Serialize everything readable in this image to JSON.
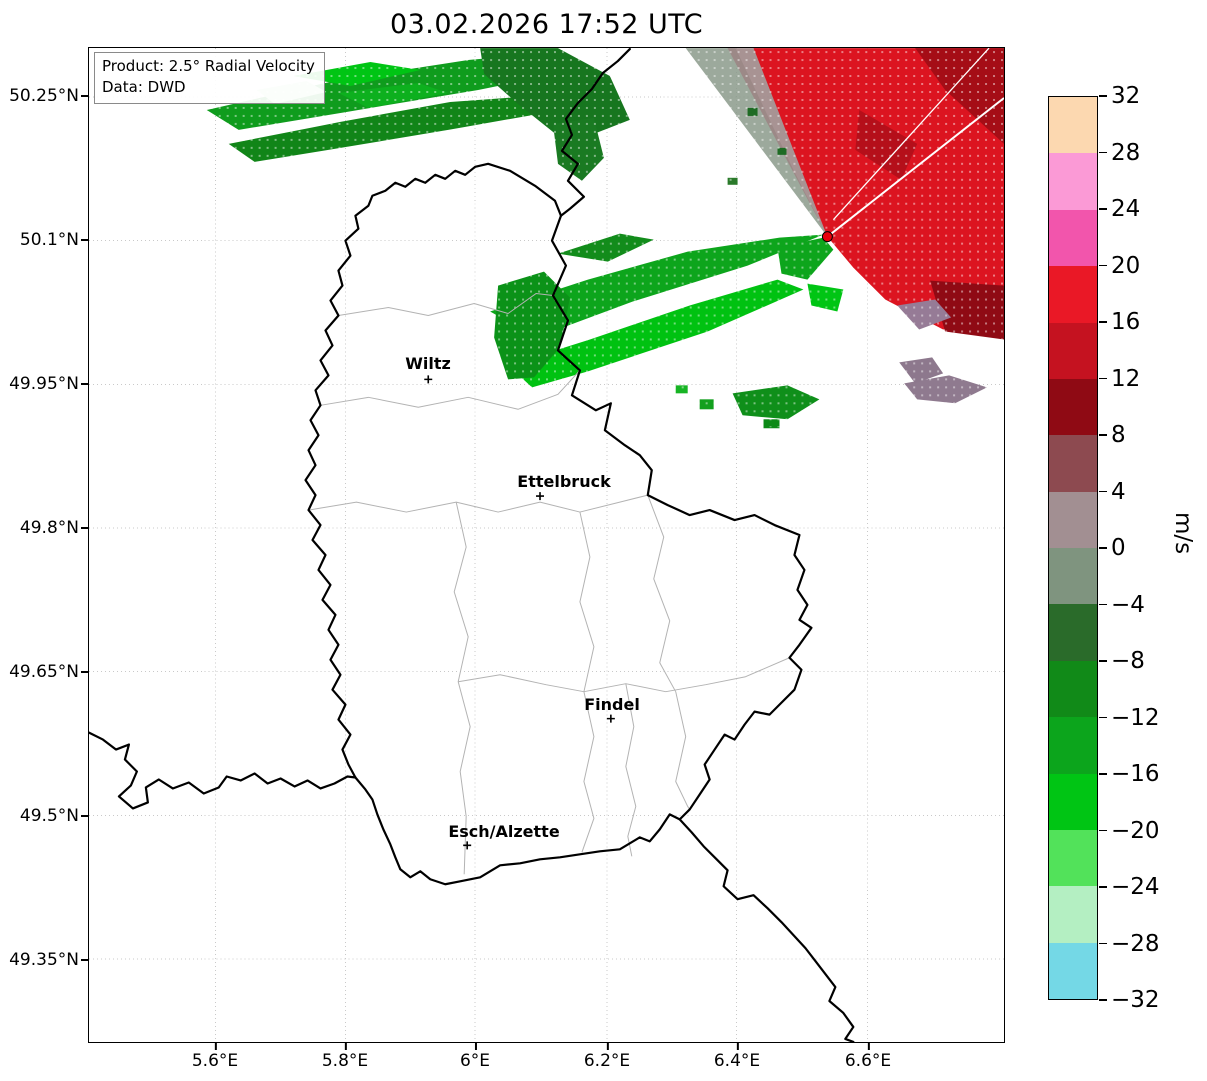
{
  "title": "03.02.2026 17:52 UTC",
  "info_box": {
    "line1": "Product: 2.5° Radial Velocity",
    "line2": "Data: DWD"
  },
  "map": {
    "cities": [
      {
        "label": "Wiltz"
      },
      {
        "label": "Ettelbruck"
      },
      {
        "label": "Findel"
      },
      {
        "label": "Esch/Alzette"
      }
    ],
    "radar_site_color": "#e8000b",
    "border_color": "#000000",
    "district_border_color": "#b3b3b3"
  },
  "axes": {
    "y_ticks": [
      "50.25°N",
      "50.1°N",
      "49.95°N",
      "49.8°N",
      "49.65°N",
      "49.5°N",
      "49.35°N"
    ],
    "x_ticks": [
      "5.6°E",
      "5.8°E",
      "6°E",
      "6.2°E",
      "6.4°E",
      "6.6°E"
    ]
  },
  "colorbar": {
    "unit": "m/s",
    "tick_labels": [
      "32",
      "28",
      "24",
      "20",
      "16",
      "12",
      "8",
      "4",
      "0",
      "−4",
      "−8",
      "−12",
      "−16",
      "−20",
      "−24",
      "−28",
      "−32"
    ],
    "value_range": [
      -32,
      32
    ],
    "segment_colors_top_to_bottom": [
      "#fcd8b0",
      "#fb9ad6",
      "#f255ac",
      "#ea1826",
      "#c51220",
      "#8f0a14",
      "#8d4a50",
      "#a28f92",
      "#7f947f",
      "#2a6b2a",
      "#118a18",
      "#0ca51c",
      "#00c514",
      "#52e25a",
      "#b4efc2",
      "#74d8e6"
    ]
  },
  "echo_colors": {
    "toward_radar_green": "#0da51c",
    "away_from_radar_red": "#dc1420"
  }
}
